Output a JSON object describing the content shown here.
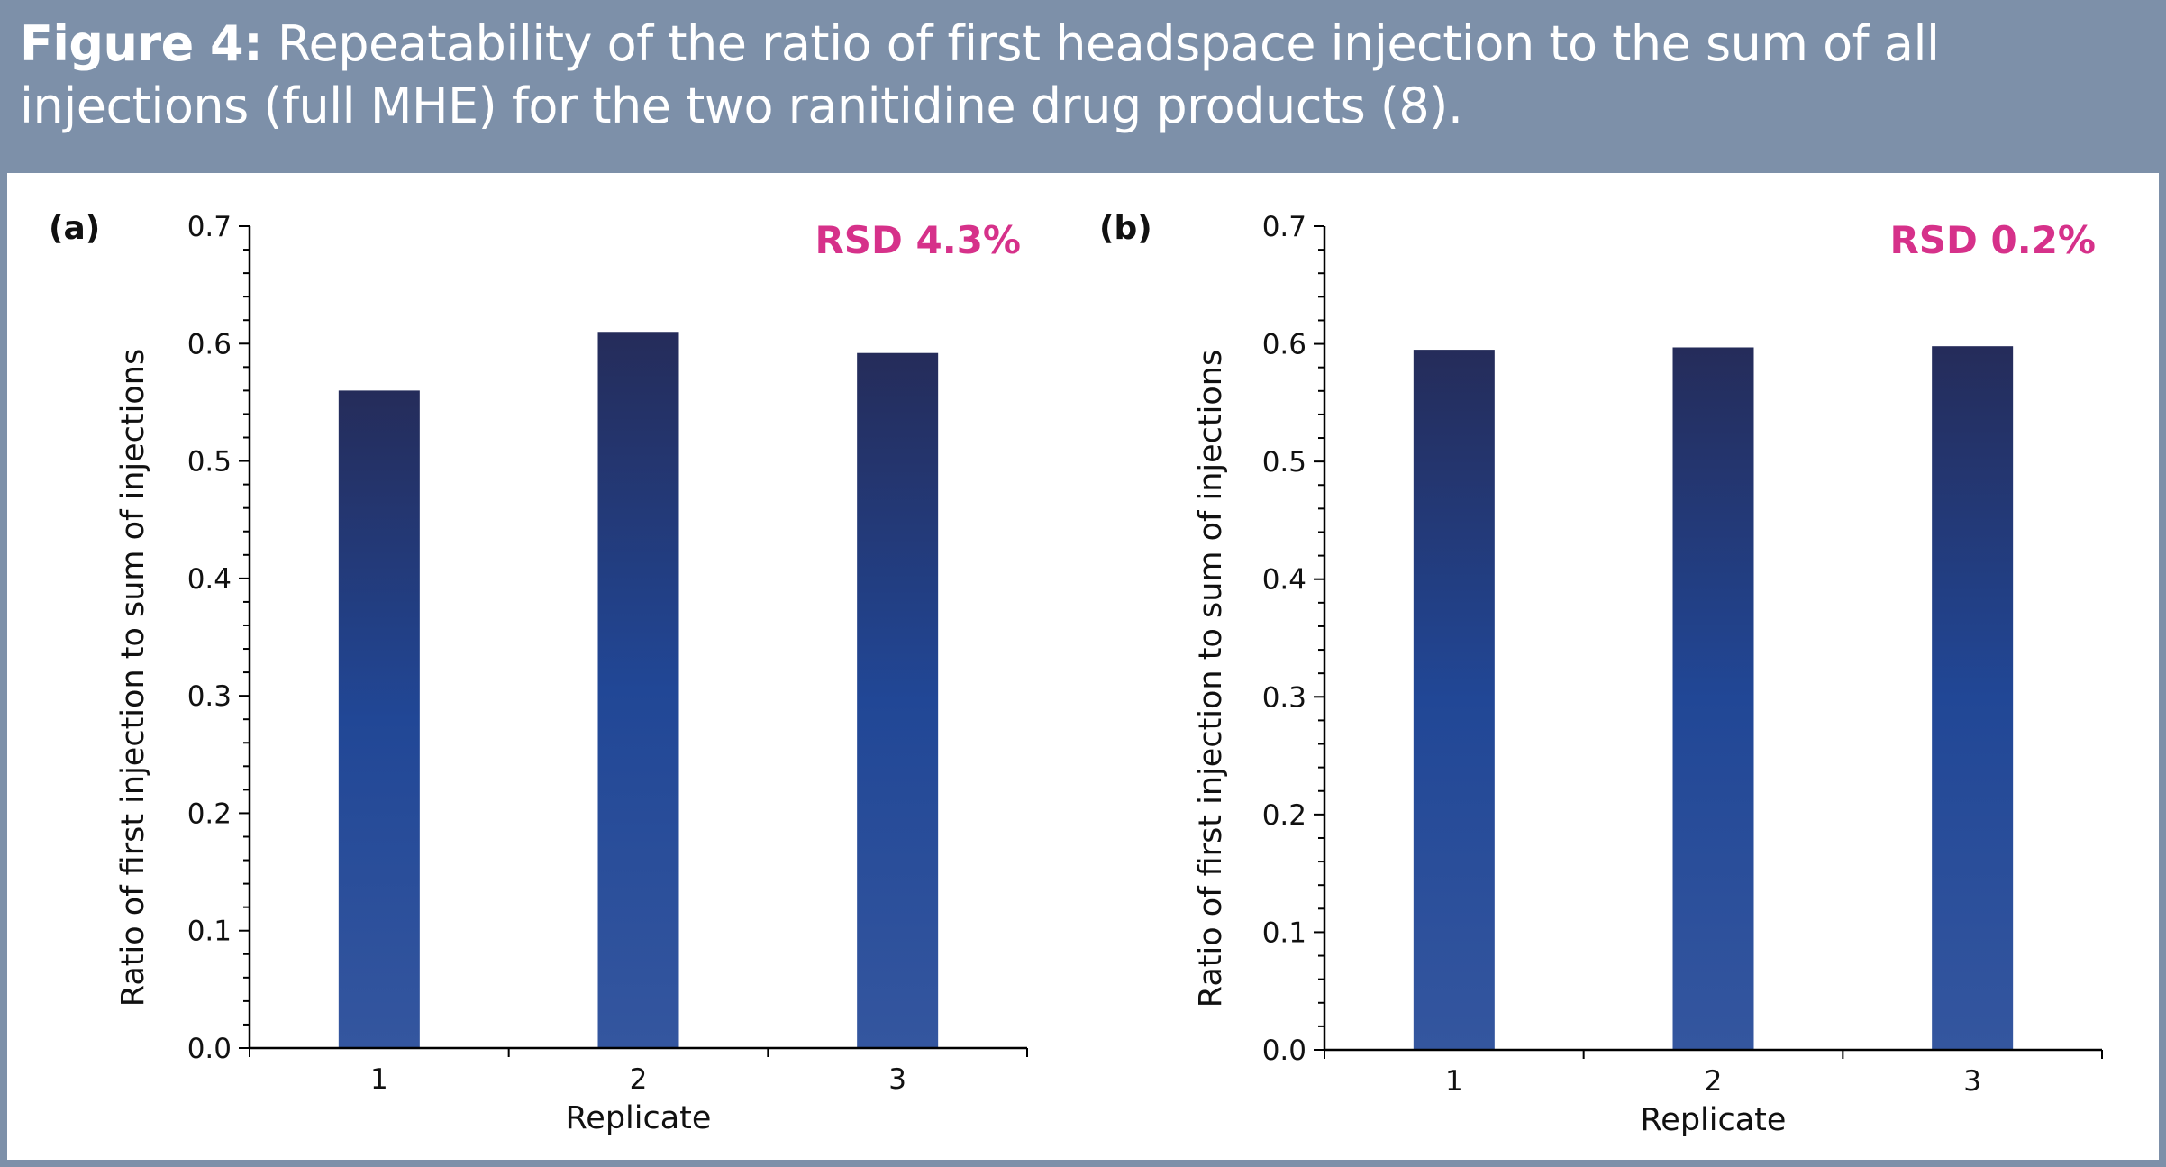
{
  "figure": {
    "label": "Figure 4:",
    "caption": " Repeatability of the ratio of first headspace injection to the sum of all injections (full MHE) for the two ranitidine drug products (8)."
  },
  "colors": {
    "header_bg": "#7d90a9",
    "bar_top": "#252c5a",
    "bar_mid": "#214796",
    "bar_bottom": "#34569f",
    "rsd_text": "#d6318a"
  },
  "chart_data": [
    {
      "type": "bar",
      "panel": "(a)",
      "annotation": "RSD 4.3%",
      "categories": [
        "1",
        "2",
        "3"
      ],
      "values": [
        0.56,
        0.61,
        0.592
      ],
      "xlabel": "Replicate",
      "ylabel": "Ratio of first injection to sum of injections",
      "ylim": [
        0,
        0.7
      ],
      "yticks": [
        "0.0",
        "0.1",
        "0.2",
        "0.3",
        "0.4",
        "0.5",
        "0.6",
        "0.7"
      ],
      "grid": false
    },
    {
      "type": "bar",
      "panel": "(b)",
      "annotation": "RSD 0.2%",
      "categories": [
        "1",
        "2",
        "3"
      ],
      "values": [
        0.595,
        0.597,
        0.598
      ],
      "xlabel": "Replicate",
      "ylabel": "Ratio of first injection to sum of injections",
      "ylim": [
        0,
        0.7
      ],
      "yticks": [
        "0.0",
        "0.1",
        "0.2",
        "0.3",
        "0.4",
        "0.5",
        "0.6",
        "0.7"
      ],
      "grid": false
    }
  ]
}
